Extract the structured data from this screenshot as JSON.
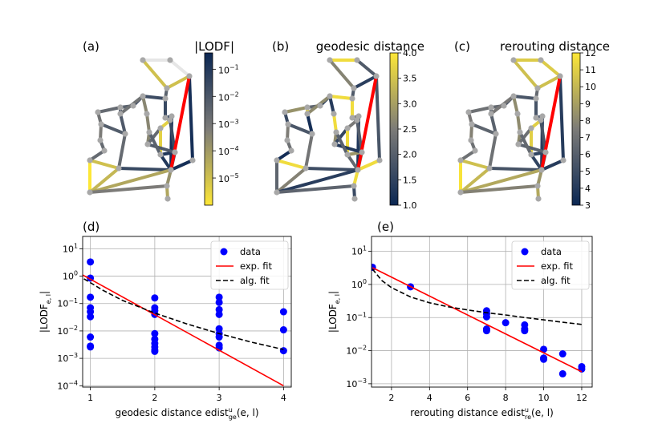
{
  "colors": {
    "cbar_top": "#0b2753",
    "cbar_mid": "#7c7b78",
    "cbar_bottom": "#fde737",
    "red": "#ff0000",
    "blue": "#0000ff",
    "node": "#a8a8a8"
  },
  "panels": {
    "a": {
      "letter": "(a)",
      "cbar_title": "|LODF|",
      "ticks": [
        "10",
        "10",
        "10",
        "10",
        "10"
      ],
      "exps": [
        "−1",
        "−2",
        "−3",
        "−4",
        "−5"
      ]
    },
    "b": {
      "letter": "(b)",
      "cbar_title": "geodesic distance",
      "ticks": [
        "4.0",
        "3.5",
        "3.0",
        "2.5",
        "2.0",
        "1.5",
        "1.0"
      ]
    },
    "c": {
      "letter": "(c)",
      "cbar_title": "rerouting distance",
      "ticks": [
        "12",
        "11",
        "10",
        "9",
        "8",
        "7",
        "6",
        "5",
        "4",
        "3"
      ]
    }
  },
  "chart_data": [
    {
      "panel": "(d)",
      "type": "scatter",
      "xlabel_main": "geodesic distance edist",
      "xlabel_sup": "u",
      "xlabel_sub": "ge",
      "xlabel_tail": "(e, l)",
      "ylabel_main": "|LODF",
      "ylabel_sub": "e, l",
      "ylabel_tail": "|",
      "x_ticks": [
        "1",
        "2",
        "3",
        "4"
      ],
      "y_ticks": [
        "10",
        "10",
        "10",
        "10",
        "10",
        "10"
      ],
      "y_exps": [
        "1",
        "0",
        "−1",
        "−2",
        "−3",
        "−4"
      ],
      "xlim": [
        0.88,
        4.12
      ],
      "ylim_log10": [
        -4.05,
        1.45
      ],
      "series": [
        {
          "name": "data",
          "style": "points",
          "x": [
            1,
            1,
            1,
            1,
            1,
            1,
            1,
            1,
            1,
            2,
            2,
            2,
            2,
            2,
            2,
            2,
            2,
            2,
            2,
            3,
            3,
            3,
            3,
            3,
            3,
            3,
            3,
            3,
            4,
            4,
            4
          ],
          "y": [
            3.3,
            0.85,
            0.17,
            0.07,
            0.05,
            0.033,
            0.006,
            0.0028,
            0.0026,
            0.16,
            0.07,
            0.055,
            0.04,
            0.008,
            0.005,
            0.0035,
            0.0026,
            0.002,
            0.0018,
            0.17,
            0.11,
            0.06,
            0.04,
            0.012,
            0.008,
            0.006,
            0.003,
            0.0024,
            0.05,
            0.011,
            0.0019
          ]
        },
        {
          "name": "exp. fit",
          "style": "red-line",
          "x": [
            0.88,
            4.0
          ],
          "y": [
            1.1,
            0.0001
          ]
        },
        {
          "name": "alg. fit",
          "style": "black-dash",
          "x": [
            0.9,
            1.0,
            1.2,
            1.5,
            2.0,
            2.5,
            3.0,
            3.5,
            4.0
          ],
          "y": [
            0.8,
            0.58,
            0.3,
            0.13,
            0.045,
            0.018,
            0.008,
            0.0039,
            0.0021
          ]
        }
      ],
      "legend": [
        "data",
        "exp. fit",
        "alg. fit"
      ]
    },
    {
      "panel": "(e)",
      "type": "scatter",
      "xlabel_main": "rerouting distance edist",
      "xlabel_sup": "u",
      "xlabel_sub": "re",
      "xlabel_tail": "(e, l)",
      "ylabel_main": "|LODF",
      "ylabel_sub": "e, l",
      "ylabel_tail": "|",
      "x_ticks": [
        "2",
        "4",
        "6",
        "8",
        "10",
        "12"
      ],
      "y_ticks": [
        "10",
        "10",
        "10",
        "10",
        "10"
      ],
      "y_exps": [
        "1",
        "0",
        "−1",
        "−2",
        "−3"
      ],
      "xlim": [
        0.95,
        12.55
      ],
      "ylim_log10": [
        -3.1,
        1.45
      ],
      "series": [
        {
          "name": "data",
          "style": "points",
          "x": [
            1,
            3,
            7,
            7,
            7,
            7,
            7,
            8,
            9,
            9,
            9,
            10,
            10,
            10,
            11,
            11,
            12,
            12
          ],
          "y": [
            3.3,
            0.85,
            0.16,
            0.13,
            0.105,
            0.045,
            0.04,
            0.07,
            0.06,
            0.045,
            0.04,
            0.011,
            0.006,
            0.0055,
            0.008,
            0.002,
            0.0033,
            0.0028
          ]
        },
        {
          "name": "exp. fit",
          "style": "red-line",
          "x": [
            1,
            12
          ],
          "y": [
            3.2,
            0.0023
          ]
        },
        {
          "name": "alg. fit",
          "style": "black-dash",
          "x": [
            1,
            1.5,
            2,
            3,
            4,
            5,
            6,
            7,
            8,
            9,
            10,
            11,
            12
          ],
          "y": [
            2.9,
            1.3,
            0.8,
            0.42,
            0.28,
            0.21,
            0.17,
            0.14,
            0.12,
            0.1,
            0.085,
            0.072,
            0.062
          ]
        }
      ],
      "legend": [
        "data",
        "exp. fit",
        "alg. fit"
      ]
    }
  ]
}
